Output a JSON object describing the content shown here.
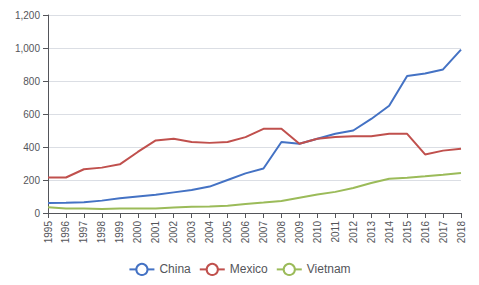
{
  "chart_data": {
    "type": "line",
    "x": [
      1995,
      1996,
      1997,
      1998,
      1999,
      2000,
      2001,
      2002,
      2003,
      2004,
      2005,
      2006,
      2007,
      2008,
      2009,
      2010,
      2011,
      2012,
      2013,
      2014,
      2015,
      2016,
      2017,
      2018
    ],
    "series": [
      {
        "name": "China",
        "color": "#4472C4",
        "values": [
          60,
          62,
          65,
          75,
          90,
          100,
          110,
          125,
          140,
          160,
          200,
          240,
          270,
          430,
          420,
          450,
          480,
          500,
          570,
          650,
          830,
          845,
          870,
          990
        ]
      },
      {
        "name": "Mexico",
        "color": "#C0504D",
        "values": [
          215,
          215,
          265,
          275,
          295,
          370,
          440,
          450,
          430,
          425,
          430,
          460,
          510,
          510,
          420,
          450,
          460,
          465,
          465,
          480,
          480,
          355,
          378,
          390
        ]
      },
      {
        "name": "Vietnam",
        "color": "#9BBB59",
        "values": [
          35,
          28,
          28,
          24,
          28,
          28,
          28,
          33,
          38,
          40,
          44,
          55,
          63,
          73,
          93,
          112,
          128,
          152,
          182,
          208,
          213,
          222,
          232,
          243
        ]
      }
    ],
    "xlim": [
      1995,
      2018
    ],
    "xticks": [
      1995,
      1996,
      1997,
      1998,
      1999,
      2000,
      2001,
      2002,
      2003,
      2004,
      2005,
      2006,
      2007,
      2008,
      2009,
      2010,
      2011,
      2012,
      2013,
      2014,
      2015,
      2016,
      2017,
      2018
    ],
    "ylim": [
      0,
      1200
    ],
    "yticks": [
      0,
      200,
      400,
      600,
      800,
      {
        "value": 1000,
        "label": "1,000"
      },
      {
        "value": 1200,
        "label": "1,200"
      }
    ],
    "grid": true,
    "legend": "bottom"
  }
}
